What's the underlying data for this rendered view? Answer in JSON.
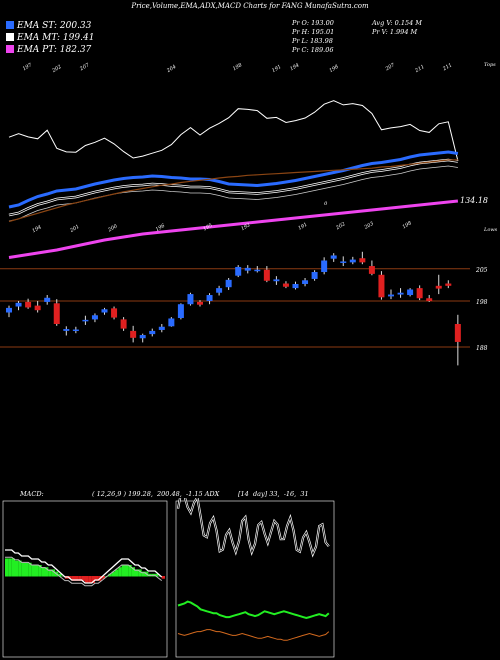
{
  "header": {
    "title": "Price,Volume,EMA,ADX,MACD Charts for FANG MunafaSutra.com",
    "ema_st": "EMA ST: 200.33",
    "ema_mt": "EMA MT: 199.41",
    "ema_pt": "EMA PT: 182.37",
    "pr_o": "Pr   O: 193.00",
    "pr_h": "Pr   H: 195.01",
    "pr_l": "Pr   L: 183.98",
    "pr_c": "Pr   C: 189.06",
    "avg_v": "Avg V: 0.154  M",
    "pr_v": "Pr   V: 1.994  M"
  },
  "colors": {
    "ema_st": "#2a6bff",
    "ema_mt": "#ffffff",
    "ema_pt": "#ee44ee",
    "up": "#2a6bff",
    "down": "#e02020",
    "level_line": "#8b3a12",
    "ema_long": "#8b4513",
    "macd_hist": "#22ee22",
    "adx_line": "#22ee22",
    "adx_minus": "#d2691e"
  },
  "labels": {
    "pink_value": "134.18",
    "tops": "Tops",
    "lows": "Lows",
    "price_right": [
      "205",
      "198",
      "188"
    ],
    "tops_labels": [
      "197",
      "202",
      "207",
      "204",
      "198",
      "191",
      "194",
      "198",
      "207",
      "211",
      "211"
    ],
    "lows_labels": [
      "194",
      "201",
      "200",
      "196",
      "195",
      "192",
      "191",
      "202",
      "203",
      "198"
    ],
    "o_mark": "0",
    "macd_label": "MACD:",
    "macd_values": "( 12,26,9 ) 199.28,  200.48,  -1.15 ADX",
    "adx_values": "[14  day] 33,  -16,  31"
  },
  "chart_data": {
    "type": "candlestick",
    "title": "Price,Volume,EMA,ADX,MACD Charts for FANG MunafaSutra.com",
    "levels": [
      205,
      198,
      188
    ],
    "candles": [
      {
        "o": 195.5,
        "h": 197.0,
        "l": 194.5,
        "c": 196.5
      },
      {
        "o": 196.8,
        "h": 198.0,
        "l": 196.0,
        "c": 197.6
      },
      {
        "o": 197.8,
        "h": 198.5,
        "l": 196.3,
        "c": 196.6
      },
      {
        "o": 197.0,
        "h": 198.0,
        "l": 195.5,
        "c": 196.0
      },
      {
        "o": 197.8,
        "h": 199.3,
        "l": 197.2,
        "c": 198.7
      },
      {
        "o": 197.5,
        "h": 198.4,
        "l": 192.6,
        "c": 193.0
      },
      {
        "o": 191.5,
        "h": 192.5,
        "l": 190.5,
        "c": 191.9
      },
      {
        "o": 191.6,
        "h": 192.4,
        "l": 191.0,
        "c": 191.8
      },
      {
        "o": 193.8,
        "h": 194.8,
        "l": 192.8,
        "c": 193.9
      },
      {
        "o": 194.0,
        "h": 195.3,
        "l": 193.4,
        "c": 194.9
      },
      {
        "o": 195.5,
        "h": 196.5,
        "l": 195.0,
        "c": 196.2
      },
      {
        "o": 196.4,
        "h": 196.8,
        "l": 194.0,
        "c": 194.4
      },
      {
        "o": 194.0,
        "h": 194.5,
        "l": 191.5,
        "c": 192.0
      },
      {
        "o": 191.5,
        "h": 192.6,
        "l": 189.0,
        "c": 190.0
      },
      {
        "o": 189.9,
        "h": 190.9,
        "l": 189.0,
        "c": 190.6
      },
      {
        "o": 190.8,
        "h": 192.0,
        "l": 190.3,
        "c": 191.5
      },
      {
        "o": 191.7,
        "h": 193.0,
        "l": 191.2,
        "c": 192.4
      },
      {
        "o": 192.5,
        "h": 194.5,
        "l": 192.4,
        "c": 194.2
      },
      {
        "o": 194.3,
        "h": 197.5,
        "l": 194.0,
        "c": 197.3
      },
      {
        "o": 197.3,
        "h": 199.8,
        "l": 197.0,
        "c": 199.5
      },
      {
        "o": 197.8,
        "h": 198.2,
        "l": 196.8,
        "c": 197.2
      },
      {
        "o": 198.0,
        "h": 199.7,
        "l": 197.3,
        "c": 199.3
      },
      {
        "o": 199.8,
        "h": 201.3,
        "l": 199.2,
        "c": 200.8
      },
      {
        "o": 201.0,
        "h": 203.0,
        "l": 200.4,
        "c": 202.6
      },
      {
        "o": 203.5,
        "h": 205.8,
        "l": 203.2,
        "c": 205.4
      },
      {
        "o": 204.6,
        "h": 205.8,
        "l": 204.0,
        "c": 205.2
      },
      {
        "o": 204.7,
        "h": 205.6,
        "l": 204.2,
        "c": 204.8
      },
      {
        "o": 204.8,
        "h": 205.6,
        "l": 202.1,
        "c": 202.4
      },
      {
        "o": 202.3,
        "h": 203.4,
        "l": 201.5,
        "c": 202.7
      },
      {
        "o": 201.8,
        "h": 202.3,
        "l": 200.8,
        "c": 201.1
      },
      {
        "o": 200.8,
        "h": 202.2,
        "l": 200.5,
        "c": 201.7
      },
      {
        "o": 201.7,
        "h": 203.0,
        "l": 201.2,
        "c": 202.5
      },
      {
        "o": 202.8,
        "h": 204.7,
        "l": 202.4,
        "c": 204.3
      },
      {
        "o": 204.3,
        "h": 207.5,
        "l": 203.8,
        "c": 206.8
      },
      {
        "o": 207.2,
        "h": 208.4,
        "l": 206.5,
        "c": 207.9
      },
      {
        "o": 206.5,
        "h": 207.7,
        "l": 205.6,
        "c": 206.6
      },
      {
        "o": 206.4,
        "h": 207.6,
        "l": 206.0,
        "c": 207.0
      },
      {
        "o": 207.3,
        "h": 208.7,
        "l": 206.0,
        "c": 206.4
      },
      {
        "o": 205.6,
        "h": 206.8,
        "l": 203.6,
        "c": 203.9
      },
      {
        "o": 203.7,
        "h": 204.5,
        "l": 198.3,
        "c": 198.8
      },
      {
        "o": 199.0,
        "h": 200.5,
        "l": 198.4,
        "c": 199.4
      },
      {
        "o": 199.4,
        "h": 200.8,
        "l": 198.7,
        "c": 199.8
      },
      {
        "o": 199.3,
        "h": 200.8,
        "l": 199.0,
        "c": 200.5
      },
      {
        "o": 200.8,
        "h": 201.4,
        "l": 198.2,
        "c": 198.6
      },
      {
        "o": 198.6,
        "h": 199.3,
        "l": 197.8,
        "c": 198.0
      },
      {
        "o": 201.3,
        "h": 203.7,
        "l": 199.5,
        "c": 200.7
      },
      {
        "o": 201.8,
        "h": 202.5,
        "l": 200.8,
        "c": 201.3
      },
      {
        "o": 193.0,
        "h": 195.0,
        "l": 184.0,
        "c": 189.1
      }
    ],
    "ema_st": [
      189.6,
      190.0,
      190.9,
      191.7,
      192.2,
      192.8,
      193.0,
      193.2,
      193.7,
      194.2,
      194.6,
      195.0,
      195.3,
      195.5,
      195.6,
      195.8,
      195.7,
      195.5,
      195.4,
      195.2,
      195.2,
      195.1,
      194.7,
      194.2,
      194.1,
      194.0,
      193.9,
      194.1,
      194.3,
      194.6,
      194.9,
      195.3,
      195.7,
      196.1,
      196.5,
      196.9,
      197.4,
      197.9,
      198.3,
      198.5,
      198.8,
      199.1,
      199.6,
      200.0,
      200.2,
      200.4,
      200.6,
      200.3
    ],
    "ema_long": [
      183.0,
      183.5,
      184.0,
      184.5,
      185.0,
      185.5,
      186.0,
      186.4,
      186.8,
      187.2,
      187.6,
      188.0,
      188.4,
      188.7,
      189.0,
      189.3,
      189.6,
      189.8,
      190.1,
      190.3,
      190.5,
      190.7,
      190.9,
      191.1,
      191.2,
      191.4,
      191.5,
      191.6,
      191.7,
      191.8,
      191.9,
      192.0,
      192.1,
      192.2,
      192.3,
      192.4,
      192.5,
      192.6,
      192.7,
      192.9,
      193.0,
      193.2,
      193.4,
      193.6,
      193.8,
      194.0,
      194.2,
      194.2
    ],
    "ema_pt": [
      183.5,
      183.8,
      184.1,
      184.4,
      184.7,
      185.0,
      185.4,
      185.8,
      186.2,
      186.6,
      187.0,
      187.3,
      187.6,
      187.9,
      188.2,
      188.4,
      188.6,
      188.8,
      189.0,
      189.2,
      189.4,
      189.6,
      189.8,
      190.0,
      190.2,
      190.4,
      190.6,
      190.8,
      191.0,
      191.2,
      191.4,
      191.6,
      191.8,
      192.0,
      192.2,
      192.4,
      192.6,
      192.8,
      193.0,
      193.2,
      193.4,
      193.6,
      193.8,
      194.0,
      194.2,
      194.4,
      194.6,
      194.8
    ],
    "macd_hist": [
      8,
      8,
      8,
      7,
      7,
      6,
      6,
      6,
      5,
      5,
      5,
      4,
      4,
      3,
      3,
      2,
      1,
      0,
      -1,
      -1,
      -2,
      -2,
      -2,
      -2,
      -3,
      -3,
      -3,
      -2,
      -2,
      -1,
      0,
      1,
      2,
      3,
      4,
      5,
      5,
      5,
      4,
      3,
      3,
      2,
      2,
      1,
      1,
      1,
      0,
      -1
    ],
    "adx": [
      32,
      33,
      34,
      36,
      35,
      33,
      31,
      28,
      27,
      26,
      25,
      24,
      24,
      22,
      21,
      20,
      20,
      21,
      22,
      23,
      24,
      25,
      23,
      22,
      21,
      22,
      24,
      26,
      25,
      24,
      23,
      24,
      25,
      26,
      25,
      24,
      23,
      22,
      21,
      20,
      19,
      20,
      21,
      22,
      23,
      22,
      21,
      24
    ],
    "di_minus": [
      18,
      17,
      16,
      17,
      18,
      19,
      20,
      20,
      21,
      22,
      22,
      21,
      20,
      20,
      19,
      18,
      17,
      16,
      16,
      17,
      18,
      17,
      16,
      15,
      14,
      13,
      13,
      14,
      15,
      14,
      13,
      12,
      12,
      11,
      11,
      12,
      13,
      14,
      15,
      16,
      17,
      18,
      17,
      16,
      15,
      16,
      17,
      20
    ]
  }
}
